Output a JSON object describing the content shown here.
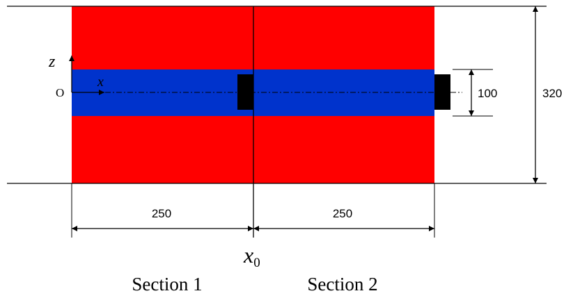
{
  "colors": {
    "outer_layer": "#ff0000",
    "core_layer": "#0033cc",
    "block": "#000000",
    "line": "#000000"
  },
  "labels": {
    "z_axis": "z",
    "x_axis": "x",
    "origin": "O",
    "x0_main": "x",
    "x0_sub": "0",
    "section_1": "Section 1",
    "section_2": "Section 2"
  },
  "dimensions": {
    "section_1_length": "250",
    "section_2_length": "250",
    "core_thickness": "100",
    "total_height": "320"
  }
}
